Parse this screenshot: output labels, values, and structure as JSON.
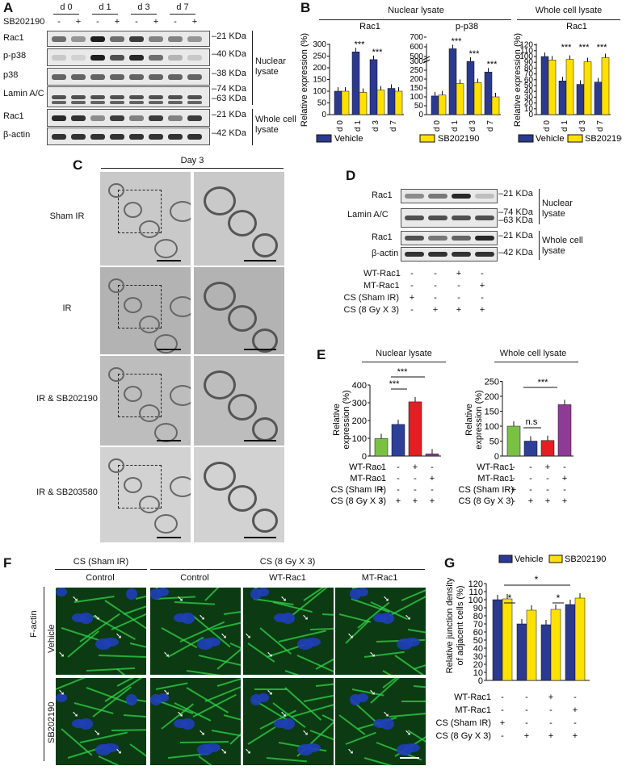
{
  "panel_a": {
    "letter": "A",
    "days": [
      "d 0",
      "d 1",
      "d 3",
      "d 7"
    ],
    "sb_label": "SB202190",
    "sb_signs": [
      "-",
      "+",
      "-",
      "+",
      "-",
      "+",
      "-",
      "+"
    ],
    "rows": [
      "Rac1",
      "p-p38",
      "p38",
      "Lamin A/C",
      "Rac1",
      "β-actin"
    ],
    "kda": [
      "–21 KDa",
      "–40 KDa",
      "–38 KDa",
      "–74 KDa",
      "–63 KDa",
      "–21 KDa",
      "–42 KDa"
    ],
    "group_nuclear": "Nuclear lysate",
    "group_whole": "Whole cell lysate"
  },
  "panel_b": {
    "letter": "B",
    "header_nuclear": "Nuclear lysate",
    "header_whole": "Whole cell lysate",
    "ylabel": "Relative expression (%)",
    "legend": [
      "Vehicle",
      "SB202190"
    ],
    "stars": "***"
  },
  "panel_c": {
    "letter": "C",
    "title": "Day 3",
    "rows": [
      "Sham IR",
      "IR",
      "IR & SB202190",
      "IR & SB203580"
    ]
  },
  "panel_d": {
    "letter": "D",
    "rows": [
      "Rac1",
      "Lamin A/C",
      "Rac1",
      "β-actin"
    ],
    "kda": [
      "–21 KDa",
      "–74 KDa",
      "–63 KDa",
      "–21 KDa",
      "–42 KDa"
    ],
    "group_nuclear": "Nuclear lysate",
    "group_whole": "Whole cell lysate",
    "conditions": [
      {
        "label": "WT-Rac1",
        "signs": [
          "-",
          "-",
          "+",
          "-"
        ]
      },
      {
        "label": "MT-Rac1",
        "signs": [
          "-",
          "-",
          "-",
          "+"
        ]
      },
      {
        "label": "CS (Sham IR)",
        "signs": [
          "+",
          "-",
          "-",
          "-"
        ]
      },
      {
        "label": "CS (8 Gy X 3)",
        "signs": [
          "-",
          "+",
          "+",
          "+"
        ]
      }
    ]
  },
  "panel_e": {
    "letter": "E",
    "title_nuclear": "Nuclear lysate",
    "title_whole": "Whole cell lysate",
    "ylabel_line1": "Relative",
    "ylabel_line2": "expression (%)",
    "stars": "***",
    "ns": "n.s",
    "conditions_nuclear": [
      {
        "label": "WT-Rac1",
        "signs": [
          "-",
          "-",
          "+",
          "-"
        ]
      },
      {
        "label": "MT-Rac1",
        "signs": [
          "-",
          "-",
          "-",
          "+"
        ]
      },
      {
        "label": "CS (Sham IR)",
        "signs": [
          "+",
          "-",
          "-",
          "-"
        ]
      },
      {
        "label": "CS (8 Gy X 3)",
        "signs": [
          "-",
          "+",
          "+",
          "+"
        ]
      }
    ],
    "conditions_whole": [
      {
        "label": "WT-Rac1",
        "signs": [
          "-",
          "-",
          "+",
          "-"
        ]
      },
      {
        "label": "MT-Rac1",
        "signs": [
          "-",
          "-",
          "-",
          "+"
        ]
      },
      {
        "label": "CS (Sham IR)",
        "signs": [
          "+",
          "-",
          "-",
          "-"
        ]
      },
      {
        "label": "CS (8 Gy X 3)",
        "signs": [
          "-",
          "+",
          "+",
          "+"
        ]
      }
    ]
  },
  "panel_f": {
    "letter": "F",
    "header_sham": "CS (Sham IR)",
    "header_8gy": "CS (8 Gy X 3)",
    "cols": [
      "Control",
      "Control",
      "WT-Rac1",
      "MT-Rac1"
    ],
    "rows": [
      "Vehicle",
      "SB202190"
    ],
    "stain": "F-actin"
  },
  "panel_g": {
    "letter": "G",
    "ylabel_line1": "Relative junction density",
    "ylabel_line2": "of adjacent cells (%)",
    "legend": [
      "Vehicle",
      "SB202190"
    ],
    "star": "*",
    "conditions": [
      {
        "label": "WT-Rac1",
        "signs": [
          "-",
          "-",
          "+",
          "-"
        ]
      },
      {
        "label": "MT-Rac1",
        "signs": [
          "-",
          "-",
          "-",
          "+"
        ]
      },
      {
        "label": "CS (Sham IR)",
        "signs": [
          "+",
          "-",
          "-",
          "-"
        ]
      },
      {
        "label": "CS (8 Gy X 3)",
        "signs": [
          "-",
          "+",
          "+",
          "+"
        ]
      }
    ]
  },
  "colors": {
    "vehicle": "#2b3990",
    "sb": "#ffe100",
    "green": "#7ac143",
    "blue": "#2e3f98",
    "red": "#e31e24",
    "purple": "#8e3b96"
  },
  "chart_data": [
    {
      "type": "bar",
      "title": "Rac1",
      "categories": [
        "d 0",
        "d 1",
        "d 3",
        "d 7"
      ],
      "series": [
        {
          "name": "Vehicle",
          "values": [
            100,
            268,
            235,
            112
          ]
        },
        {
          "name": "SB202190",
          "values": [
            100,
            95,
            105,
            100
          ]
        }
      ],
      "ylim": [
        0,
        300
      ],
      "yticks": [
        0,
        50,
        100,
        150,
        200,
        250,
        300
      ]
    },
    {
      "type": "bar",
      "title": "p-p38",
      "categories": [
        "d 0",
        "d 1",
        "d 3",
        "d 7"
      ],
      "series": [
        {
          "name": "Vehicle",
          "values": [
            105,
            580,
            450,
            240
          ]
        },
        {
          "name": "SB202190",
          "values": [
            110,
            175,
            180,
            100
          ]
        }
      ],
      "ylim": [
        0,
        700
      ],
      "yticks": [
        0,
        50,
        100,
        150,
        200,
        250,
        300,
        500,
        600,
        700
      ]
    },
    {
      "type": "bar",
      "title": "Rac1",
      "categories": [
        "d 0",
        "d 1",
        "d 3",
        "d 7"
      ],
      "series": [
        {
          "name": "Vehicle",
          "values": [
            100,
            58,
            52,
            56
          ]
        },
        {
          "name": "SB202190",
          "values": [
            94,
            95,
            91,
            98
          ]
        }
      ],
      "ylim": [
        0,
        120
      ],
      "yticks": [
        0,
        10,
        20,
        30,
        40,
        50,
        60,
        70,
        80,
        90,
        100,
        110,
        120
      ]
    },
    {
      "type": "bar",
      "title": "Nuclear lysate",
      "categories": [
        "1",
        "2",
        "3",
        "4"
      ],
      "values": [
        98,
        178,
        305,
        12
      ],
      "ylim": [
        0,
        400
      ],
      "yticks": [
        0,
        100,
        200,
        300,
        400
      ]
    },
    {
      "type": "bar",
      "title": "Whole cell lysate",
      "categories": [
        "1",
        "2",
        "3",
        "4"
      ],
      "values": [
        100,
        50,
        52,
        172
      ],
      "ylim": [
        0,
        250
      ],
      "yticks": [
        0,
        50,
        100,
        150,
        200,
        250
      ]
    },
    {
      "type": "bar",
      "categories": [
        "1",
        "2",
        "3",
        "4"
      ],
      "series": [
        {
          "name": "Vehicle",
          "values": [
            100,
            70,
            69,
            94
          ]
        },
        {
          "name": "SB202190",
          "values": [
            101,
            87,
            88,
            102
          ]
        }
      ],
      "ylim": [
        0,
        120
      ],
      "yticks": [
        0,
        10,
        20,
        30,
        40,
        50,
        60,
        70,
        80,
        90,
        100,
        110,
        120
      ]
    }
  ]
}
